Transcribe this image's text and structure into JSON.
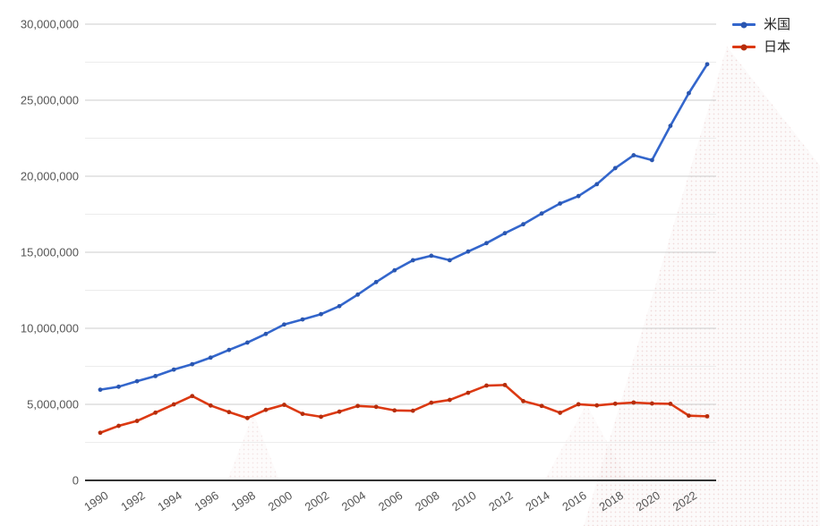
{
  "chart_data": {
    "type": "line",
    "title": "",
    "xlabel": "",
    "ylabel": "",
    "x": [
      1990,
      1991,
      1992,
      1993,
      1994,
      1995,
      1996,
      1997,
      1998,
      1999,
      2000,
      2001,
      2002,
      2003,
      2004,
      2005,
      2006,
      2007,
      2008,
      2009,
      2010,
      2011,
      2012,
      2013,
      2014,
      2015,
      2016,
      2017,
      2018,
      2019,
      2020,
      2021,
      2022,
      2023
    ],
    "series": [
      {
        "name": "米国",
        "color": "#3366cc",
        "point_color": "#2a56b0",
        "values": [
          5963144,
          6158129,
          6520327,
          6858559,
          7287236,
          7639749,
          8073122,
          8577552,
          9062818,
          9631172,
          10250952,
          10581929,
          10929108,
          11456450,
          12217196,
          13039197,
          13815583,
          14474228,
          14769862,
          14478067,
          15048970,
          15599731,
          16253970,
          16843196,
          17550687,
          18206023,
          18695106,
          19477337,
          20533058,
          21380976,
          21060474,
          23315081,
          25462700,
          27360935
        ]
      },
      {
        "name": "日本",
        "color": "#dc3912",
        "point_color": "#b52d0b",
        "values": [
          3132818,
          3584418,
          3908809,
          4454144,
          4998798,
          5545566,
          4923392,
          4492450,
          4098363,
          4635982,
          4968359,
          4374711,
          4182846,
          4519561,
          4893116,
          4831467,
          4601663,
          4579751,
          5106679,
          5289493,
          5759072,
          6233147,
          6272363,
          5212328,
          4896994,
          4444931,
          5003678,
          4930837,
          5040880,
          5118000,
          5055587,
          5034621,
          4256411,
          4212945
        ]
      }
    ],
    "ylim": [
      0,
      30000000
    ],
    "y_major_step": 5000000,
    "y_minor_step": 2500000,
    "y_tick_labels": [
      "0",
      "5,000,000",
      "10,000,000",
      "15,000,000",
      "20,000,000",
      "25,000,000",
      "30,000,000"
    ],
    "x_tick_labels": [
      "1990",
      "1992",
      "1994",
      "1996",
      "1998",
      "2000",
      "2002",
      "2004",
      "2006",
      "2008",
      "2010",
      "2012",
      "2014",
      "2016",
      "2018",
      "2020",
      "2022"
    ],
    "x_label_step": 2,
    "grid": true,
    "legend_position": "right-top"
  },
  "colors": {
    "major_grid": "#cccccc",
    "minor_grid": "#ececec",
    "axis_line": "#333333",
    "tick_label": "#555555",
    "legend_text": "#222222"
  }
}
